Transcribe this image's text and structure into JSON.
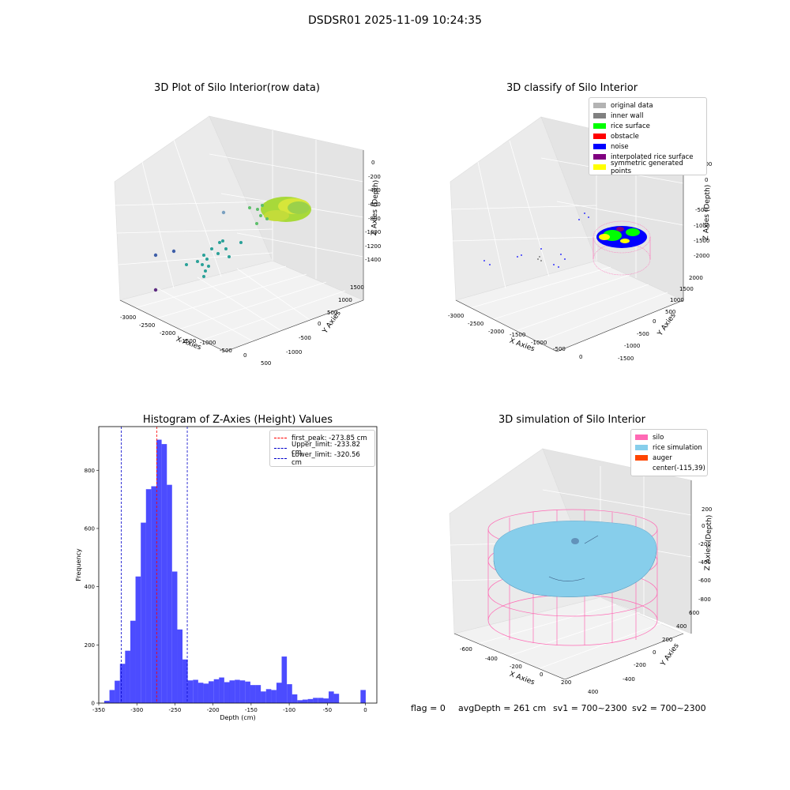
{
  "figure": {
    "suptitle": "DSDSR01 2025-11-09 10:24:35"
  },
  "panel_raw": {
    "title": "3D Plot of Silo Interior(row data)",
    "xlabel": "X Axies",
    "ylabel": "Y Axies",
    "zlabel": "Z Axies (Depth)",
    "xticks": [
      "-3000",
      "-2500",
      "-2000",
      "-1500",
      "-1000",
      "-500",
      "0",
      "500"
    ],
    "yticks": [
      "-1000",
      "-500",
      "0",
      "500",
      "1000",
      "1500"
    ],
    "zticks": [
      "0",
      "-200",
      "-400",
      "-600",
      "-800",
      "-1000",
      "-1200",
      "-1400"
    ]
  },
  "panel_classify": {
    "title": "3D classify of Silo Interior",
    "xlabel": "X Axies",
    "ylabel": "Y Axies",
    "zlabel": "Z Axies (Depth)",
    "xticks": [
      "-3000",
      "-2500",
      "-2000",
      "-1500",
      "-1000",
      "-500",
      "0"
    ],
    "yticks": [
      "-1500",
      "-1000",
      "-500",
      "0",
      "500",
      "1000",
      "1500",
      "2000"
    ],
    "zticks": [
      "500",
      "0",
      "-500",
      "-1000",
      "-1500",
      "-2000"
    ],
    "legend": [
      {
        "label": "original data",
        "color": "#b3b3b3"
      },
      {
        "label": "inner wall",
        "color": "#808080"
      },
      {
        "label": "rice surface",
        "color": "#00ff00"
      },
      {
        "label": "obstacle",
        "color": "#ff0000"
      },
      {
        "label": "noise",
        "color": "#0000ff"
      },
      {
        "label": "interpolated rice surface",
        "color": "#800080"
      },
      {
        "label": "symmetric generated points",
        "color": "#ffff00"
      }
    ]
  },
  "panel_hist": {
    "title": "Histogram of Z-Axies (Height) Values",
    "legend": [
      {
        "label": "first_peak: -273.85 cm",
        "color": "#ff0000"
      },
      {
        "label": "Upper_limit: -233.82 cm",
        "color": "#0000cc"
      },
      {
        "label": "Lower_limit: -320.56 cm",
        "color": "#0000cc"
      }
    ]
  },
  "panel_sim": {
    "title": "3D simulation of Silo Interior",
    "xlabel": "X Axies",
    "ylabel": "Y Axies",
    "zlabel": "Z Axies (Depth)",
    "xticks": [
      "-600",
      "-400",
      "-200",
      "0",
      "200",
      "400"
    ],
    "yticks": [
      "-400",
      "-200",
      "0",
      "200",
      "400",
      "600"
    ],
    "zticks": [
      "200",
      "0",
      "-200",
      "-400",
      "-600",
      "-800"
    ],
    "legend": [
      {
        "label": "silo",
        "color": "#ff69b4"
      },
      {
        "label": "rice simulation",
        "color": "#87ceeb"
      },
      {
        "label": "auger",
        "color": "#ff4500"
      },
      {
        "label": "center(-115,39)",
        "color": ""
      }
    ]
  },
  "status": {
    "flag": "flag = 0",
    "avg": "avgDepth = 261 cm",
    "sv1": "sv1 = 700~2300",
    "sv2": "sv2 = 700~2300"
  },
  "chart_data": {
    "type": "bar",
    "title": "Histogram of Z-Axies (Height) Values",
    "xlabel": "Depth (cm)",
    "ylabel": "Frequency",
    "xlim": [
      -350,
      15
    ],
    "ylim": [
      0,
      950
    ],
    "xticks": [
      -350,
      -300,
      -250,
      -200,
      -150,
      -100,
      -50,
      0
    ],
    "yticks": [
      0,
      200,
      400,
      600,
      800
    ],
    "bin_width": 6.85,
    "bins": [
      {
        "x": -339.4,
        "v": 8
      },
      {
        "x": -332.5,
        "v": 45
      },
      {
        "x": -325.7,
        "v": 77
      },
      {
        "x": -318.8,
        "v": 135
      },
      {
        "x": -312.0,
        "v": 180
      },
      {
        "x": -305.1,
        "v": 283
      },
      {
        "x": -298.3,
        "v": 435
      },
      {
        "x": -291.4,
        "v": 620
      },
      {
        "x": -284.6,
        "v": 735
      },
      {
        "x": -277.7,
        "v": 745
      },
      {
        "x": -270.9,
        "v": 905
      },
      {
        "x": -264.0,
        "v": 890
      },
      {
        "x": -257.2,
        "v": 750
      },
      {
        "x": -250.3,
        "v": 452
      },
      {
        "x": -243.5,
        "v": 253
      },
      {
        "x": -236.6,
        "v": 150
      },
      {
        "x": -229.8,
        "v": 78
      },
      {
        "x": -222.9,
        "v": 80
      },
      {
        "x": -216.1,
        "v": 70
      },
      {
        "x": -209.2,
        "v": 67
      },
      {
        "x": -202.4,
        "v": 75
      },
      {
        "x": -195.5,
        "v": 82
      },
      {
        "x": -188.7,
        "v": 88
      },
      {
        "x": -181.8,
        "v": 72
      },
      {
        "x": -175.0,
        "v": 78
      },
      {
        "x": -168.1,
        "v": 80
      },
      {
        "x": -161.3,
        "v": 78
      },
      {
        "x": -154.4,
        "v": 74
      },
      {
        "x": -147.6,
        "v": 62
      },
      {
        "x": -140.7,
        "v": 62
      },
      {
        "x": -133.9,
        "v": 40
      },
      {
        "x": -127.0,
        "v": 48
      },
      {
        "x": -120.2,
        "v": 45
      },
      {
        "x": -113.3,
        "v": 70
      },
      {
        "x": -106.5,
        "v": 160
      },
      {
        "x": -99.6,
        "v": 65
      },
      {
        "x": -92.8,
        "v": 30
      },
      {
        "x": -85.9,
        "v": 10
      },
      {
        "x": -79.1,
        "v": 12
      },
      {
        "x": -72.2,
        "v": 14
      },
      {
        "x": -65.4,
        "v": 18
      },
      {
        "x": -58.5,
        "v": 18
      },
      {
        "x": -51.7,
        "v": 16
      },
      {
        "x": -44.8,
        "v": 40
      },
      {
        "x": -38.0,
        "v": 32
      },
      {
        "x": -3.0,
        "v": 45
      }
    ],
    "vlines": [
      {
        "x": -273.85,
        "color": "#ff0000"
      },
      {
        "x": -233.82,
        "color": "#0000cc"
      },
      {
        "x": -320.56,
        "color": "#0000cc"
      }
    ],
    "bar_color": "#0000ff"
  }
}
